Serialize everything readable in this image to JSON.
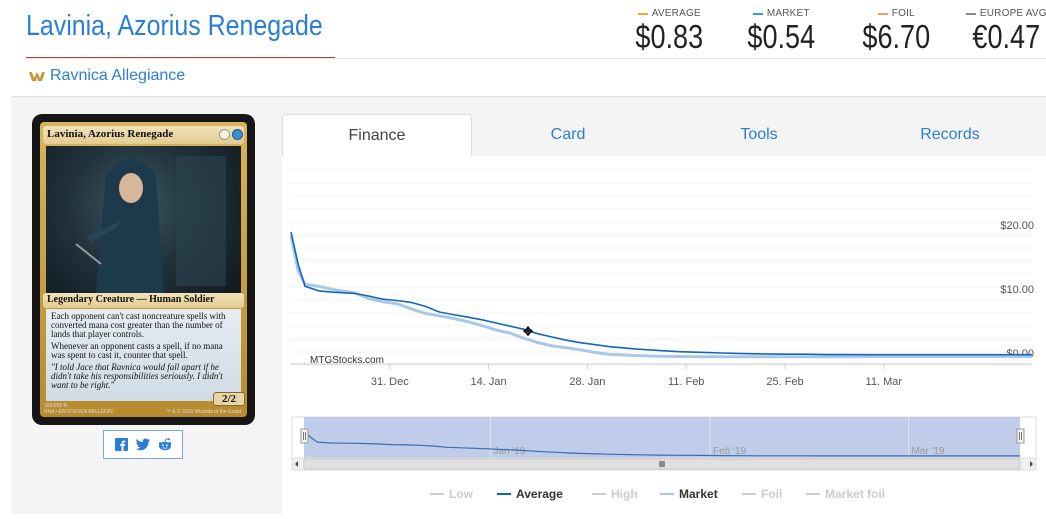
{
  "card": {
    "title": "Lavinia, Azorius Renegade",
    "set_name": "Ravnica Allegiance",
    "image": {
      "name": "Lavinia, Azorius Renegade",
      "type_line": "Legendary Creature — Human Soldier",
      "rules_text_1": "Each opponent can't cast noncreature spells with converted mana cost greater than the number of lands that player controls.",
      "rules_text_2": "Whenever an opponent casts a spell, if no mana was spent to cast it, counter that spell.",
      "flavor_text": "\"I told Jace that Ravnica would fall apart if he didn't take his responsibilities seriously. I didn't want to be right.\"",
      "power_toughness": "2/2",
      "collector": "189/259 R",
      "set_lang": "RNA • EN",
      "artist": "STEVEN BELLEDIN",
      "copyright": "™ & © 2019 Wizards of the Coast"
    }
  },
  "prices": [
    {
      "label": "AVERAGE",
      "value": "$0.83",
      "color": "#f5a623"
    },
    {
      "label": "MARKET",
      "value": "$0.54",
      "color": "#2fa4c6"
    },
    {
      "label": "FOIL",
      "value": "$6.70",
      "color": "#f0a060"
    },
    {
      "label": "EUROPE AVG",
      "value": "€0.47",
      "color": "#888888"
    }
  ],
  "tabs": [
    {
      "label": "Finance",
      "active": true
    },
    {
      "label": "Card",
      "active": false
    },
    {
      "label": "Tools",
      "active": false
    },
    {
      "label": "Records",
      "active": false
    }
  ],
  "share": {
    "icons": [
      "facebook-icon",
      "twitter-icon",
      "reddit-icon"
    ]
  },
  "chart_data": {
    "type": "line",
    "watermark": "MTGStocks.com",
    "y_ticks": [
      "$20.00",
      "$10.00",
      "$0.00"
    ],
    "ylim": [
      0,
      20
    ],
    "x_ticks": [
      "31. Dec",
      "14. Jan",
      "28. Jan",
      "11. Feb",
      "25. Feb",
      "11. Mar"
    ],
    "navigator_ticks": [
      "Jan '19",
      "Feb '19",
      "Mar '19"
    ],
    "x_day_range": [
      -14,
      91
    ],
    "series": [
      {
        "name": "Average",
        "color": "#1565c0",
        "x": [
          -14,
          -13,
          -12,
          -10,
          -8,
          -5,
          -3,
          -1,
          1,
          3,
          5,
          7,
          9,
          11,
          13,
          15,
          17,
          19,
          21,
          23,
          25,
          27,
          29,
          31,
          33,
          35,
          38,
          41,
          44,
          47,
          50,
          53,
          56,
          59,
          62,
          65,
          68,
          71,
          74,
          77,
          80,
          83,
          86,
          91
        ],
        "values": [
          20.0,
          15.0,
          11.5,
          10.8,
          10.6,
          10.4,
          10.0,
          9.5,
          9.3,
          9.0,
          8.4,
          7.5,
          7.1,
          6.7,
          6.3,
          5.8,
          5.3,
          4.8,
          4.1,
          3.6,
          3.1,
          2.7,
          2.4,
          2.1,
          1.9,
          1.7,
          1.5,
          1.3,
          1.2,
          1.1,
          1.0,
          0.95,
          0.9,
          0.9,
          0.85,
          0.85,
          0.83,
          0.83,
          0.83,
          0.83,
          0.83,
          0.83,
          0.83,
          0.83
        ]
      },
      {
        "name": "Market",
        "color": "#a9c7e6",
        "x": [
          -14,
          -13,
          -12,
          -10,
          -8,
          -5,
          -3,
          -1,
          1,
          3,
          5,
          7,
          9,
          11,
          13,
          15,
          17,
          19,
          21,
          23,
          25,
          27,
          29,
          31,
          33,
          35,
          38,
          41,
          44,
          47,
          50,
          53,
          56,
          59,
          62,
          65,
          68,
          71,
          74,
          77,
          80,
          83,
          86,
          91
        ],
        "values": [
          19.5,
          14.0,
          11.8,
          11.5,
          11.0,
          10.5,
          9.6,
          9.1,
          8.8,
          8.0,
          7.3,
          6.9,
          6.5,
          6.0,
          5.4,
          4.7,
          4.2,
          3.4,
          2.7,
          2.2,
          1.9,
          1.6,
          1.2,
          0.9,
          0.8,
          0.7,
          0.6,
          0.55,
          0.5,
          0.5,
          0.5,
          0.5,
          0.5,
          0.52,
          0.52,
          0.52,
          0.54,
          0.54,
          0.54,
          0.54,
          0.54,
          0.54,
          0.54,
          0.54
        ]
      }
    ],
    "legend": [
      {
        "label": "Low",
        "color": "#cccccc",
        "active": false
      },
      {
        "label": "Average",
        "color": "#1565c0",
        "active": true
      },
      {
        "label": "High",
        "color": "#cccccc",
        "active": false
      },
      {
        "label": "Market",
        "color": "#a9c7e6",
        "active": true
      },
      {
        "label": "Foil",
        "color": "#cccccc",
        "active": false
      },
      {
        "label": "Market foil",
        "color": "#cccccc",
        "active": false
      }
    ],
    "legend_position": "bottom",
    "grid": true
  }
}
